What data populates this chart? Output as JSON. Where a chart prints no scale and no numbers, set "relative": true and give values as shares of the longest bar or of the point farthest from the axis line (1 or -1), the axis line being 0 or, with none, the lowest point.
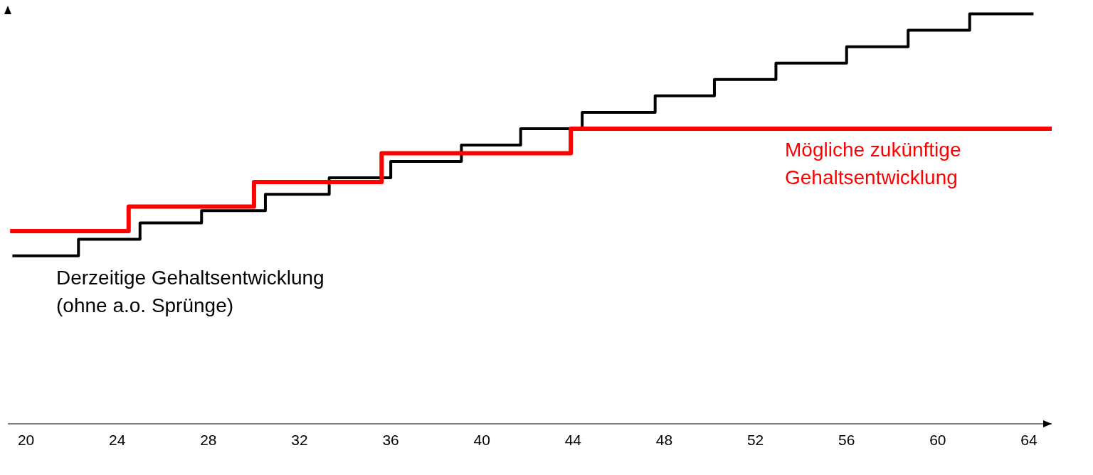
{
  "chart_data": {
    "type": "step",
    "relative": true,
    "xlim": [
      19.2,
      65.0
    ],
    "xticks": [
      20,
      24,
      28,
      32,
      36,
      40,
      44,
      48,
      52,
      56,
      60,
      64
    ],
    "tick_labels": "x",
    "series": [
      {
        "name": "Derzeitige Gehaltsentwicklung\n(ohne a.o. Sprünge)",
        "color": "#000000",
        "x": [
          19.4,
          22.3,
          25.0,
          27.7,
          30.5,
          33.3,
          36.0,
          39.1,
          41.7,
          44.4,
          47.6,
          50.2,
          52.9,
          56.0,
          58.7,
          61.4,
          64.2
        ],
        "values": [
          0.41,
          0.45,
          0.49,
          0.52,
          0.56,
          0.6,
          0.64,
          0.68,
          0.72,
          0.76,
          0.8,
          0.84,
          0.88,
          0.92,
          0.96,
          1.0,
          1.0
        ]
      },
      {
        "name": "Mögliche zukünftige\nGehaltsentwicklung",
        "color": "#ff0000",
        "x": [
          19.3,
          24.5,
          30.0,
          35.6,
          43.9,
          65.0
        ],
        "values": [
          0.47,
          0.53,
          0.59,
          0.66,
          0.72,
          0.72
        ]
      }
    ]
  }
}
